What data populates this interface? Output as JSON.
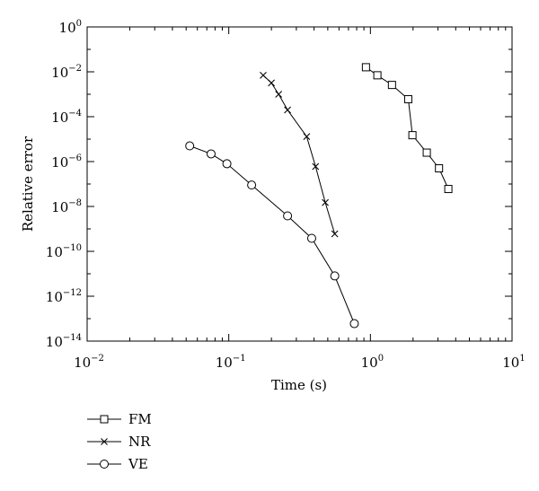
{
  "chart_data": {
    "type": "scatter",
    "title": "",
    "xlabel": "Time (s)",
    "ylabel": "Relative error",
    "x_scale": "log",
    "y_scale": "log",
    "xlim": [
      0.01,
      10
    ],
    "ylim": [
      1e-14,
      1
    ],
    "x_ticks": [
      {
        "value": 0.01,
        "base": "10",
        "exp": "−2"
      },
      {
        "value": 0.1,
        "base": "10",
        "exp": "−1"
      },
      {
        "value": 1,
        "base": "10",
        "exp": "0"
      },
      {
        "value": 10,
        "base": "10",
        "exp": "1"
      }
    ],
    "y_ticks": [
      {
        "value": 1,
        "base": "10",
        "exp": "0"
      },
      {
        "value": 0.01,
        "base": "10",
        "exp": "−2"
      },
      {
        "value": 0.0001,
        "base": "10",
        "exp": "−4"
      },
      {
        "value": 1e-06,
        "base": "10",
        "exp": "−6"
      },
      {
        "value": 1e-08,
        "base": "10",
        "exp": "−8"
      },
      {
        "value": 1e-10,
        "base": "10",
        "exp": "−10"
      },
      {
        "value": 1e-12,
        "base": "10",
        "exp": "−12"
      },
      {
        "value": 1e-14,
        "base": "10",
        "exp": "−14"
      }
    ],
    "grid": false,
    "legend_position": "below-left",
    "series": [
      {
        "name": "FM",
        "marker": "square",
        "x": [
          0.93,
          1.12,
          1.42,
          1.85,
          1.98,
          2.5,
          3.05,
          3.55
        ],
        "y": [
          0.016,
          0.007,
          0.0026,
          0.0006,
          1.5e-05,
          2.5e-06,
          5e-07,
          6e-08
        ]
      },
      {
        "name": "NR",
        "marker": "x",
        "x": [
          0.175,
          0.2,
          0.225,
          0.26,
          0.355,
          0.41,
          0.48,
          0.56
        ],
        "y": [
          0.007,
          0.0032,
          0.001,
          0.0002,
          1.3e-05,
          6e-07,
          1.5e-08,
          6e-10
        ]
      },
      {
        "name": "VE",
        "marker": "circle",
        "x": [
          0.053,
          0.075,
          0.097,
          0.145,
          0.26,
          0.385,
          0.56,
          0.77
        ],
        "y": [
          5e-06,
          2.2e-06,
          8e-07,
          9e-08,
          3.8e-09,
          3.8e-10,
          8e-12,
          6e-14
        ]
      }
    ]
  }
}
